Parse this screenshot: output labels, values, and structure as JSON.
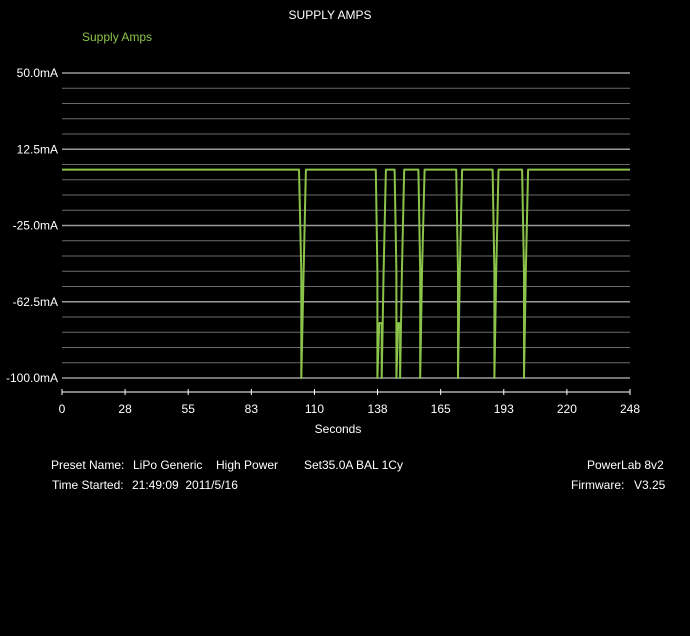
{
  "colors": {
    "background": "#000000",
    "series": "#8bc34a",
    "grid": "#6a6a6a",
    "text": "#ffffff"
  },
  "chart_data": {
    "type": "line",
    "title": "SUPPLY AMPS",
    "legend": "top-left",
    "xlabel": "Seconds",
    "ylabel": "",
    "xlim": [
      0,
      248
    ],
    "ylim": [
      -100,
      50
    ],
    "x_ticks": [
      "0",
      "28",
      "55",
      "83",
      "110",
      "138",
      "165",
      "193",
      "220",
      "248"
    ],
    "y_ticks": [
      "50.0mA",
      "12.5mA",
      "-25.0mA",
      "-62.5mA",
      "-100.0mA"
    ],
    "y_tick_values": [
      50,
      12.5,
      -25,
      -62.5,
      -100
    ],
    "grid": true,
    "series": [
      {
        "name": "Supply Amps",
        "x": [
          0,
          103.5,
          104.5,
          104.5,
          105.5,
          106.5,
          137,
          137.7,
          137.7,
          138.5,
          139.6,
          139.6,
          140.4,
          141.4,
          145.2,
          146,
          146,
          146.8,
          147.6,
          147.6,
          148.4,
          149.4,
          155.6,
          156.4,
          156.4,
          157.2,
          158.3,
          172.1,
          172.9,
          172.9,
          173.7,
          174.7,
          188,
          188.8,
          188.8,
          189.6,
          190.6,
          200.9,
          201.7,
          201.7,
          202.5,
          203.5,
          248
        ],
        "values": [
          2.5,
          2.5,
          -48,
          -100,
          -48,
          2.5,
          2.5,
          -48,
          -100,
          -73,
          -73,
          -100,
          -48,
          2.5,
          2.5,
          -48,
          -100,
          -73,
          -73,
          -100,
          -48,
          2.5,
          2.5,
          -48,
          -100,
          -48,
          2.5,
          2.5,
          -48,
          -100,
          -48,
          2.5,
          2.5,
          -48,
          -100,
          -48,
          2.5,
          2.5,
          -48,
          -100,
          -48,
          2.5,
          2.5
        ]
      }
    ]
  },
  "info": {
    "preset_label": "Preset Name:",
    "preset_value": "LiPo Generic",
    "preset_mode": "High Power",
    "preset_setting": "Set35.0A BAL 1Cy",
    "time_label": "Time Started:",
    "time_value": "21:49:09  2011/5/16",
    "device_name": "PowerLab 8v2",
    "firmware_label": "Firmware:",
    "firmware_value": "V3.25"
  }
}
